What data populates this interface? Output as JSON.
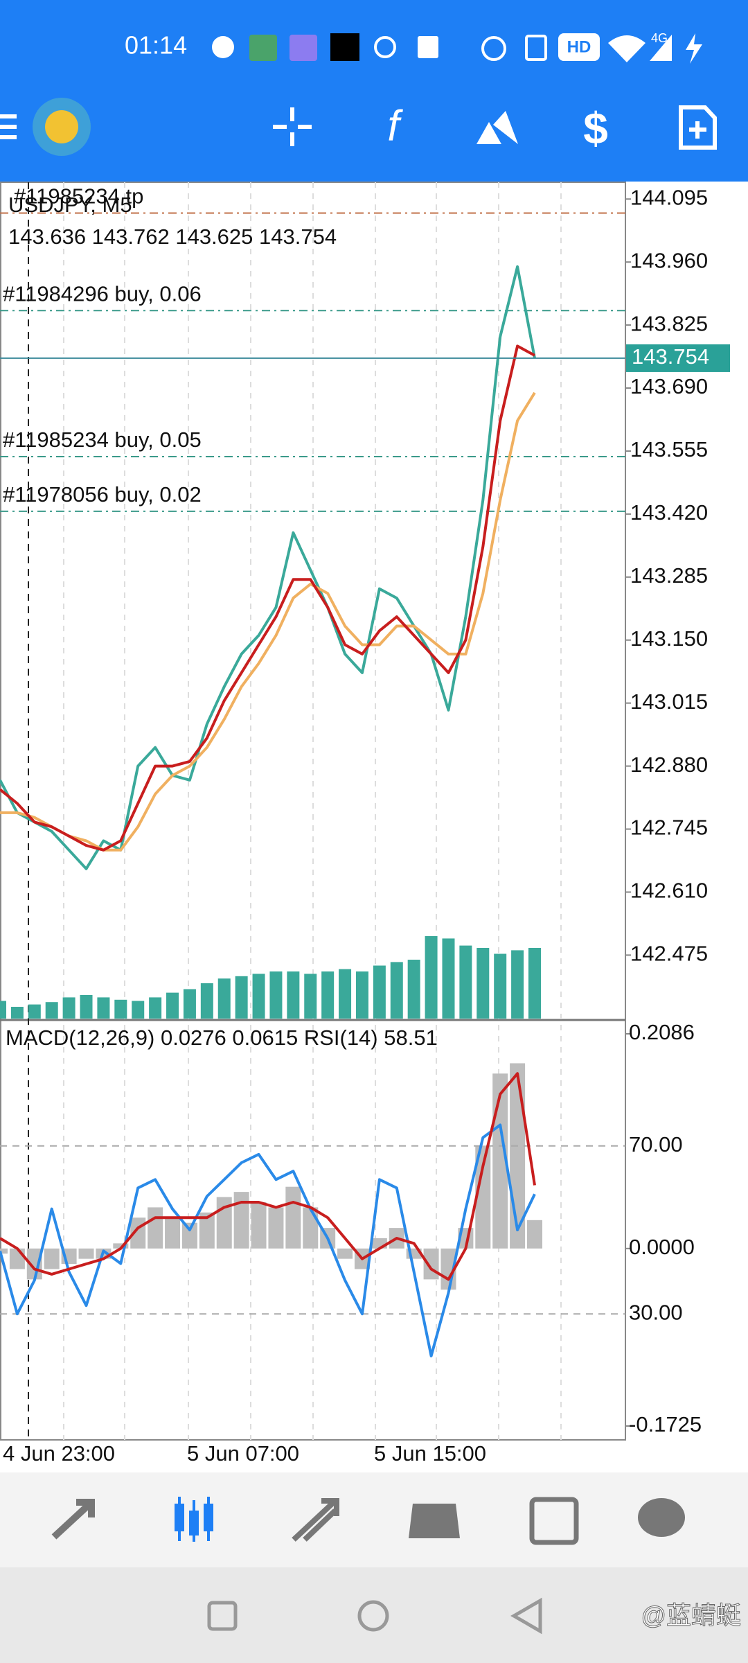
{
  "status_bar": {
    "time": "01:14",
    "hd": "HD",
    "network": "4G"
  },
  "chart": {
    "symbol": "USDJPY, M5",
    "ohlc": "143.636 143.762 143.625 143.754",
    "ylim": [
      142.336,
      144.131
    ],
    "yticks": [
      144.095,
      {
        "value": 143.96,
        "label": "143.960"
      },
      143.825,
      {
        "value": 143.69,
        "label": "143.690"
      },
      143.555,
      {
        "value": 143.42,
        "label": "143.420"
      },
      143.285,
      {
        "value": 143.15,
        "label": "143.150"
      },
      143.015,
      {
        "value": 142.88,
        "label": "142.880"
      },
      142.745,
      {
        "value": 142.61,
        "label": "142.610"
      },
      142.475
    ],
    "current_price": 143.754,
    "orders": [
      {
        "label": "#11985234 tp",
        "price": 144.065
      },
      {
        "label": "#11984296 buy, 0.06",
        "price": 143.856
      },
      {
        "label": "#11985234 buy, 0.05",
        "price": 143.543
      },
      {
        "label": "#11978056 buy, 0.02",
        "price": 143.426
      }
    ],
    "close": [
      142.85,
      142.78,
      142.76,
      142.74,
      142.7,
      142.66,
      142.72,
      142.7,
      142.88,
      142.92,
      142.86,
      142.85,
      142.97,
      143.05,
      143.12,
      143.16,
      143.22,
      143.38,
      143.3,
      143.22,
      143.12,
      143.08,
      143.26,
      143.24,
      143.18,
      143.12,
      143.0,
      143.2,
      143.45,
      143.8,
      143.95,
      143.754
    ],
    "ma_red": [
      142.83,
      142.8,
      142.76,
      142.75,
      142.73,
      142.71,
      142.7,
      142.72,
      142.8,
      142.88,
      142.88,
      142.89,
      142.94,
      143.02,
      143.08,
      143.14,
      143.2,
      143.28,
      143.28,
      143.22,
      143.14,
      143.12,
      143.17,
      143.2,
      143.16,
      143.12,
      143.08,
      143.15,
      143.35,
      143.62,
      143.78,
      143.76
    ],
    "ma_yellow": [
      142.78,
      142.78,
      142.77,
      142.75,
      142.73,
      142.72,
      142.7,
      142.7,
      142.75,
      142.82,
      142.86,
      142.88,
      142.92,
      142.98,
      143.05,
      143.1,
      143.16,
      143.24,
      143.27,
      143.25,
      143.18,
      143.14,
      143.14,
      143.18,
      143.18,
      143.15,
      143.12,
      143.12,
      143.25,
      143.45,
      143.62,
      143.68
    ],
    "volume": [
      15,
      10,
      12,
      14,
      18,
      20,
      18,
      16,
      15,
      18,
      22,
      25,
      30,
      34,
      36,
      38,
      40,
      40,
      38,
      40,
      42,
      40,
      45,
      48,
      50,
      70,
      68,
      62,
      60,
      55,
      58,
      60
    ],
    "xlabels": [
      "4 Jun 23:00",
      "5 Jun 07:00",
      "5 Jun 15:00"
    ]
  },
  "indicator": {
    "label": "MACD(12,26,9) 0.0276 0.0615 RSI(14) 58.51",
    "macd_ylim": [
      -0.1725,
      0.2086
    ],
    "macd_ticks": [
      0.2086,
      {
        "value": 0,
        "label": "0.0000"
      },
      -0.1725
    ],
    "rsi_ylim": [
      0,
      100
    ],
    "rsi_ticks": [
      {
        "value": 70,
        "label": "70.00"
      },
      {
        "value": 30,
        "label": "30.00"
      }
    ],
    "histogram": [
      -0.005,
      -0.02,
      -0.03,
      -0.02,
      -0.015,
      -0.01,
      -0.01,
      0.005,
      0.03,
      0.04,
      0.03,
      0.025,
      0.035,
      0.05,
      0.055,
      0.045,
      0.04,
      0.06,
      0.04,
      0.02,
      -0.01,
      -0.02,
      0.01,
      0.02,
      -0.01,
      -0.03,
      -0.04,
      0.02,
      0.1,
      0.17,
      0.18,
      0.0276
    ],
    "signal": [
      0.01,
      0,
      -0.02,
      -0.025,
      -0.02,
      -0.015,
      -0.01,
      0,
      0.02,
      0.03,
      0.03,
      0.03,
      0.03,
      0.04,
      0.045,
      0.045,
      0.04,
      0.045,
      0.04,
      0.03,
      0.01,
      -0.01,
      0,
      0.01,
      0.005,
      -0.02,
      -0.03,
      0,
      0.08,
      0.15,
      0.17,
      0.0615
    ],
    "rsi": [
      45,
      30,
      38,
      55,
      40,
      32,
      45,
      42,
      60,
      62,
      55,
      50,
      58,
      62,
      66,
      68,
      62,
      64,
      55,
      48,
      38,
      30,
      62,
      60,
      40,
      20,
      35,
      55,
      72,
      75,
      50,
      58.51
    ]
  },
  "watermark": "@蓝蜻蜓"
}
